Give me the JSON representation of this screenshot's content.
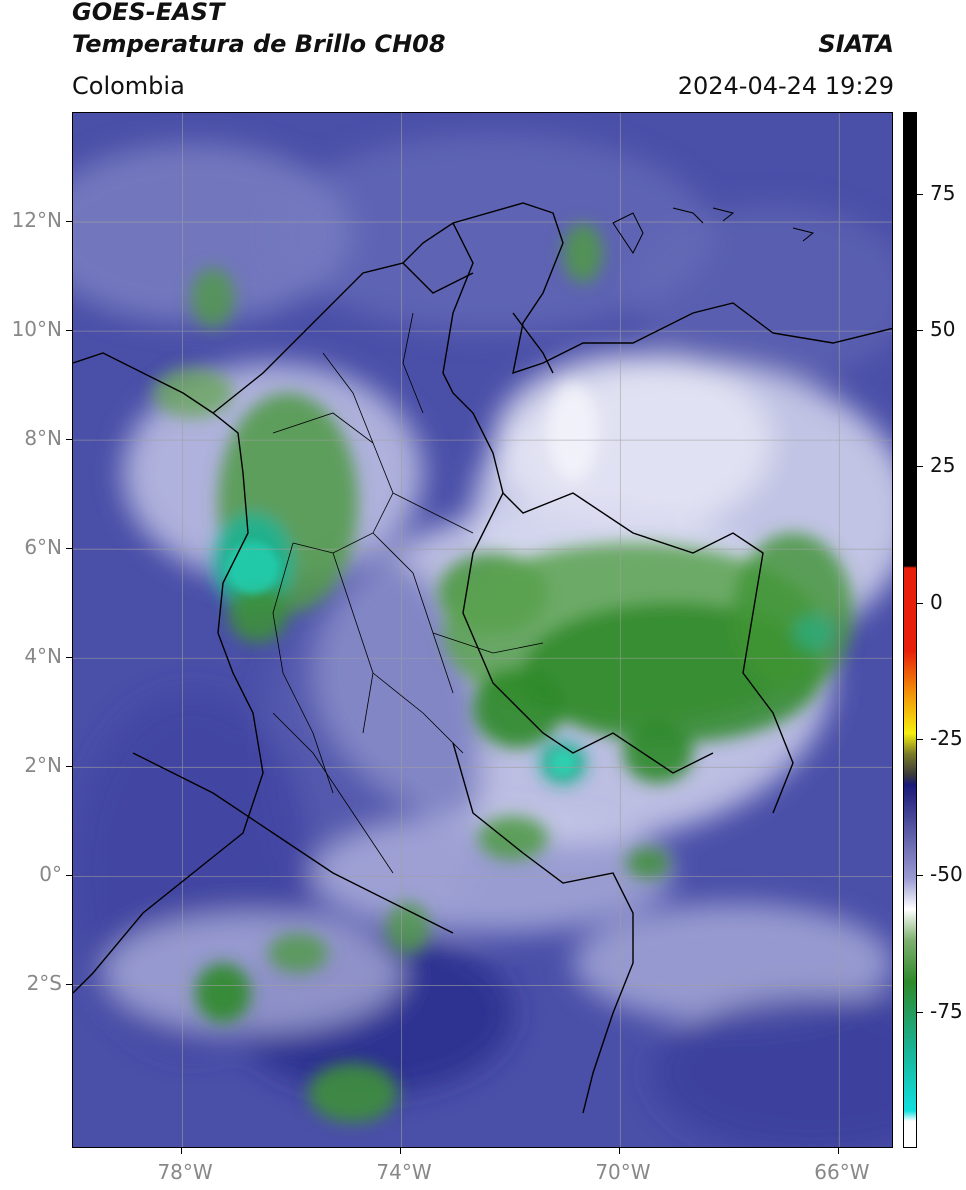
{
  "header": {
    "title_line1": "GOES-EAST",
    "title_line2": "Temperatura de Brillo CH08",
    "brand": "SIATA",
    "region": "Colombia",
    "datetime": "2024-04-24 19:29"
  },
  "map": {
    "lat_labels": [
      {
        "label": "12°N",
        "value": 12
      },
      {
        "label": "10°N",
        "value": 10
      },
      {
        "label": "8°N",
        "value": 8
      },
      {
        "label": "6°N",
        "value": 6
      },
      {
        "label": "4°N",
        "value": 4
      },
      {
        "label": "2°N",
        "value": 2
      },
      {
        "label": "0°",
        "value": 0
      },
      {
        "label": "2°S",
        "value": -2
      }
    ],
    "lon_labels": [
      {
        "label": "78°W",
        "value": -78
      },
      {
        "label": "74°W",
        "value": -74
      },
      {
        "label": "70°W",
        "value": -70
      },
      {
        "label": "66°W",
        "value": -66
      }
    ],
    "lat_range": [
      -5.0,
      14.0
    ],
    "lon_range": [
      -80.0,
      -65.0
    ],
    "gridlines": true
  },
  "colorbar": {
    "tick_labels": [
      "75",
      "50",
      "25",
      "0",
      "-25",
      "-50",
      "-75"
    ],
    "tick_values": [
      75,
      50,
      25,
      0,
      -25,
      -50,
      -75
    ],
    "range": [
      -100,
      90
    ],
    "colors": {
      "black": "#000000",
      "red": "#e8200a",
      "orange": "#f29008",
      "yellow": "#f5f010",
      "olive": "#7a7a2a",
      "navy": "#1a1a7a",
      "lavender": "#9a9ad2",
      "white": "#ffffff",
      "green": "#2f8a2a",
      "teal": "#1ab08e",
      "cyan": "#10e0e0"
    }
  }
}
